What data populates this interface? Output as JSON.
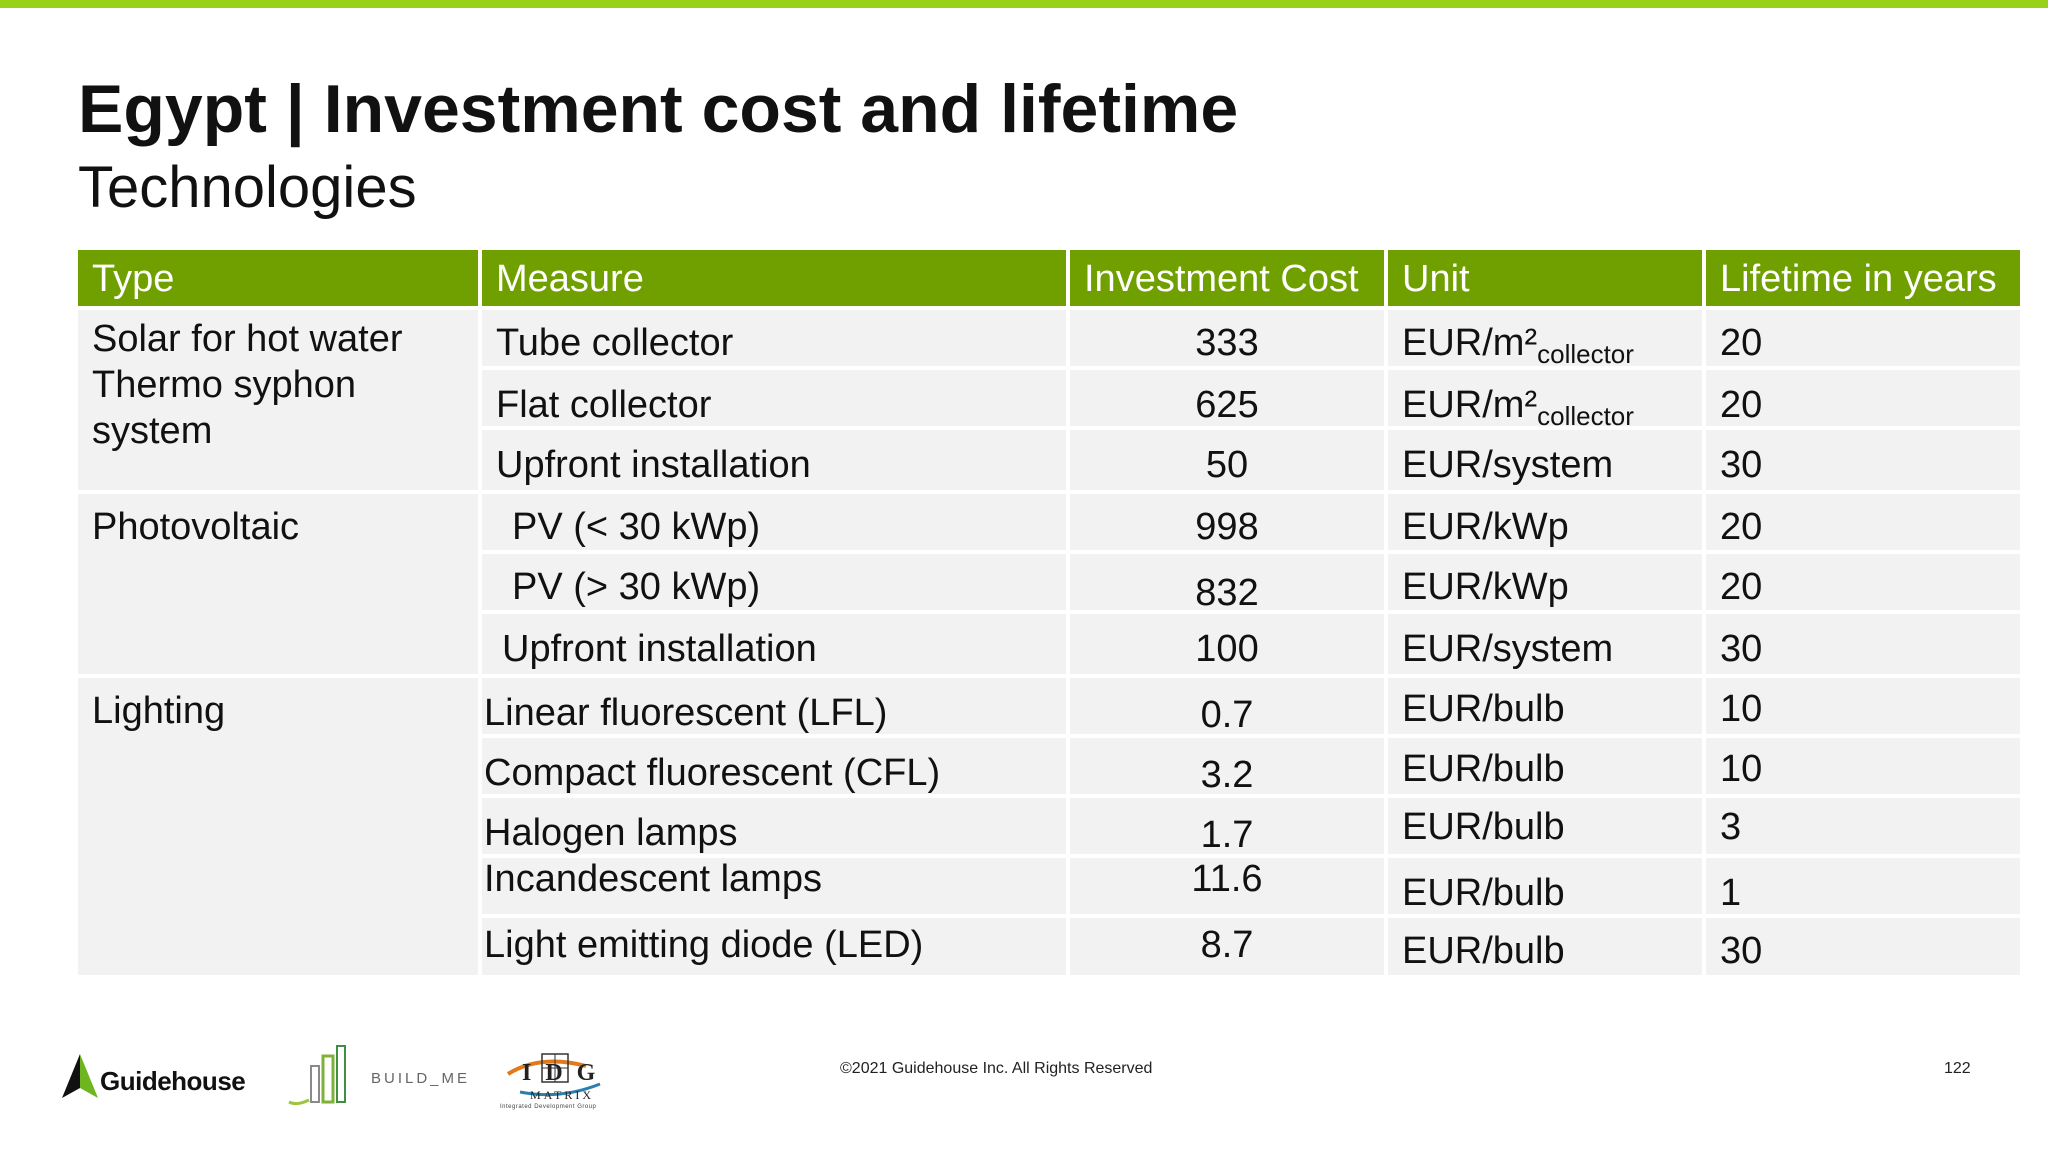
{
  "header": {
    "title": "Egypt | Investment cost and lifetime",
    "subtitle": "Technologies"
  },
  "table": {
    "columns": [
      "Type",
      "Measure",
      "Investment Cost",
      "Unit",
      "Lifetime in years"
    ],
    "groups": [
      "Solar for hot water Thermo syphon system",
      "Photovoltaic",
      "Lighting"
    ],
    "rows": [
      {
        "measure": "Tube collector",
        "cost": "333",
        "unit": "EUR/m²",
        "unit_sub": "collector",
        "lifetime": "20"
      },
      {
        "measure": "Flat collector",
        "cost": "625",
        "unit": "EUR/m²",
        "unit_sub": "collector",
        "lifetime": "20"
      },
      {
        "measure": "Upfront installation",
        "cost": "50",
        "unit": "EUR/system",
        "lifetime": "30"
      },
      {
        "measure": "PV (< 30 kWp)",
        "cost": "998",
        "unit": "EUR/kWp",
        "lifetime": "20"
      },
      {
        "measure": "PV (> 30 kWp)",
        "cost": "832",
        "unit": "EUR/kWp",
        "lifetime": "20"
      },
      {
        "measure": "Upfront installation",
        "cost": "100",
        "unit": "EUR/system",
        "lifetime": "30"
      },
      {
        "measure": "Linear fluorescent (LFL)",
        "cost": "0.7",
        "unit": "EUR/bulb",
        "lifetime": "10"
      },
      {
        "measure": "Compact fluorescent (CFL)",
        "cost": "3.2",
        "unit": "EUR/bulb",
        "lifetime": "10"
      },
      {
        "measure": "Halogen lamps",
        "cost": "1.7",
        "unit": "EUR/bulb",
        "lifetime": "3"
      },
      {
        "measure": "Incandescent lamps",
        "cost": "11.6",
        "unit": "EUR/bulb",
        "lifetime": "1"
      },
      {
        "measure": "Light emitting diode (LED)",
        "cost": "8.7",
        "unit": "EUR/bulb",
        "lifetime": "30"
      }
    ]
  },
  "footer": {
    "copyright": "©2021 Guidehouse Inc. All Rights Reserved",
    "page_number": "122",
    "logos": {
      "guidehouse": "Guidehouse",
      "build_me": "BUILD_ME",
      "idg_letters": "IDG",
      "idg_matrix": "MATRIX",
      "idg_tagline": "Integrated Development Group"
    }
  },
  "colors": {
    "accent_bar": "#97d118",
    "header_green": "#6fa000",
    "row_bg": "#f2f2f2"
  }
}
